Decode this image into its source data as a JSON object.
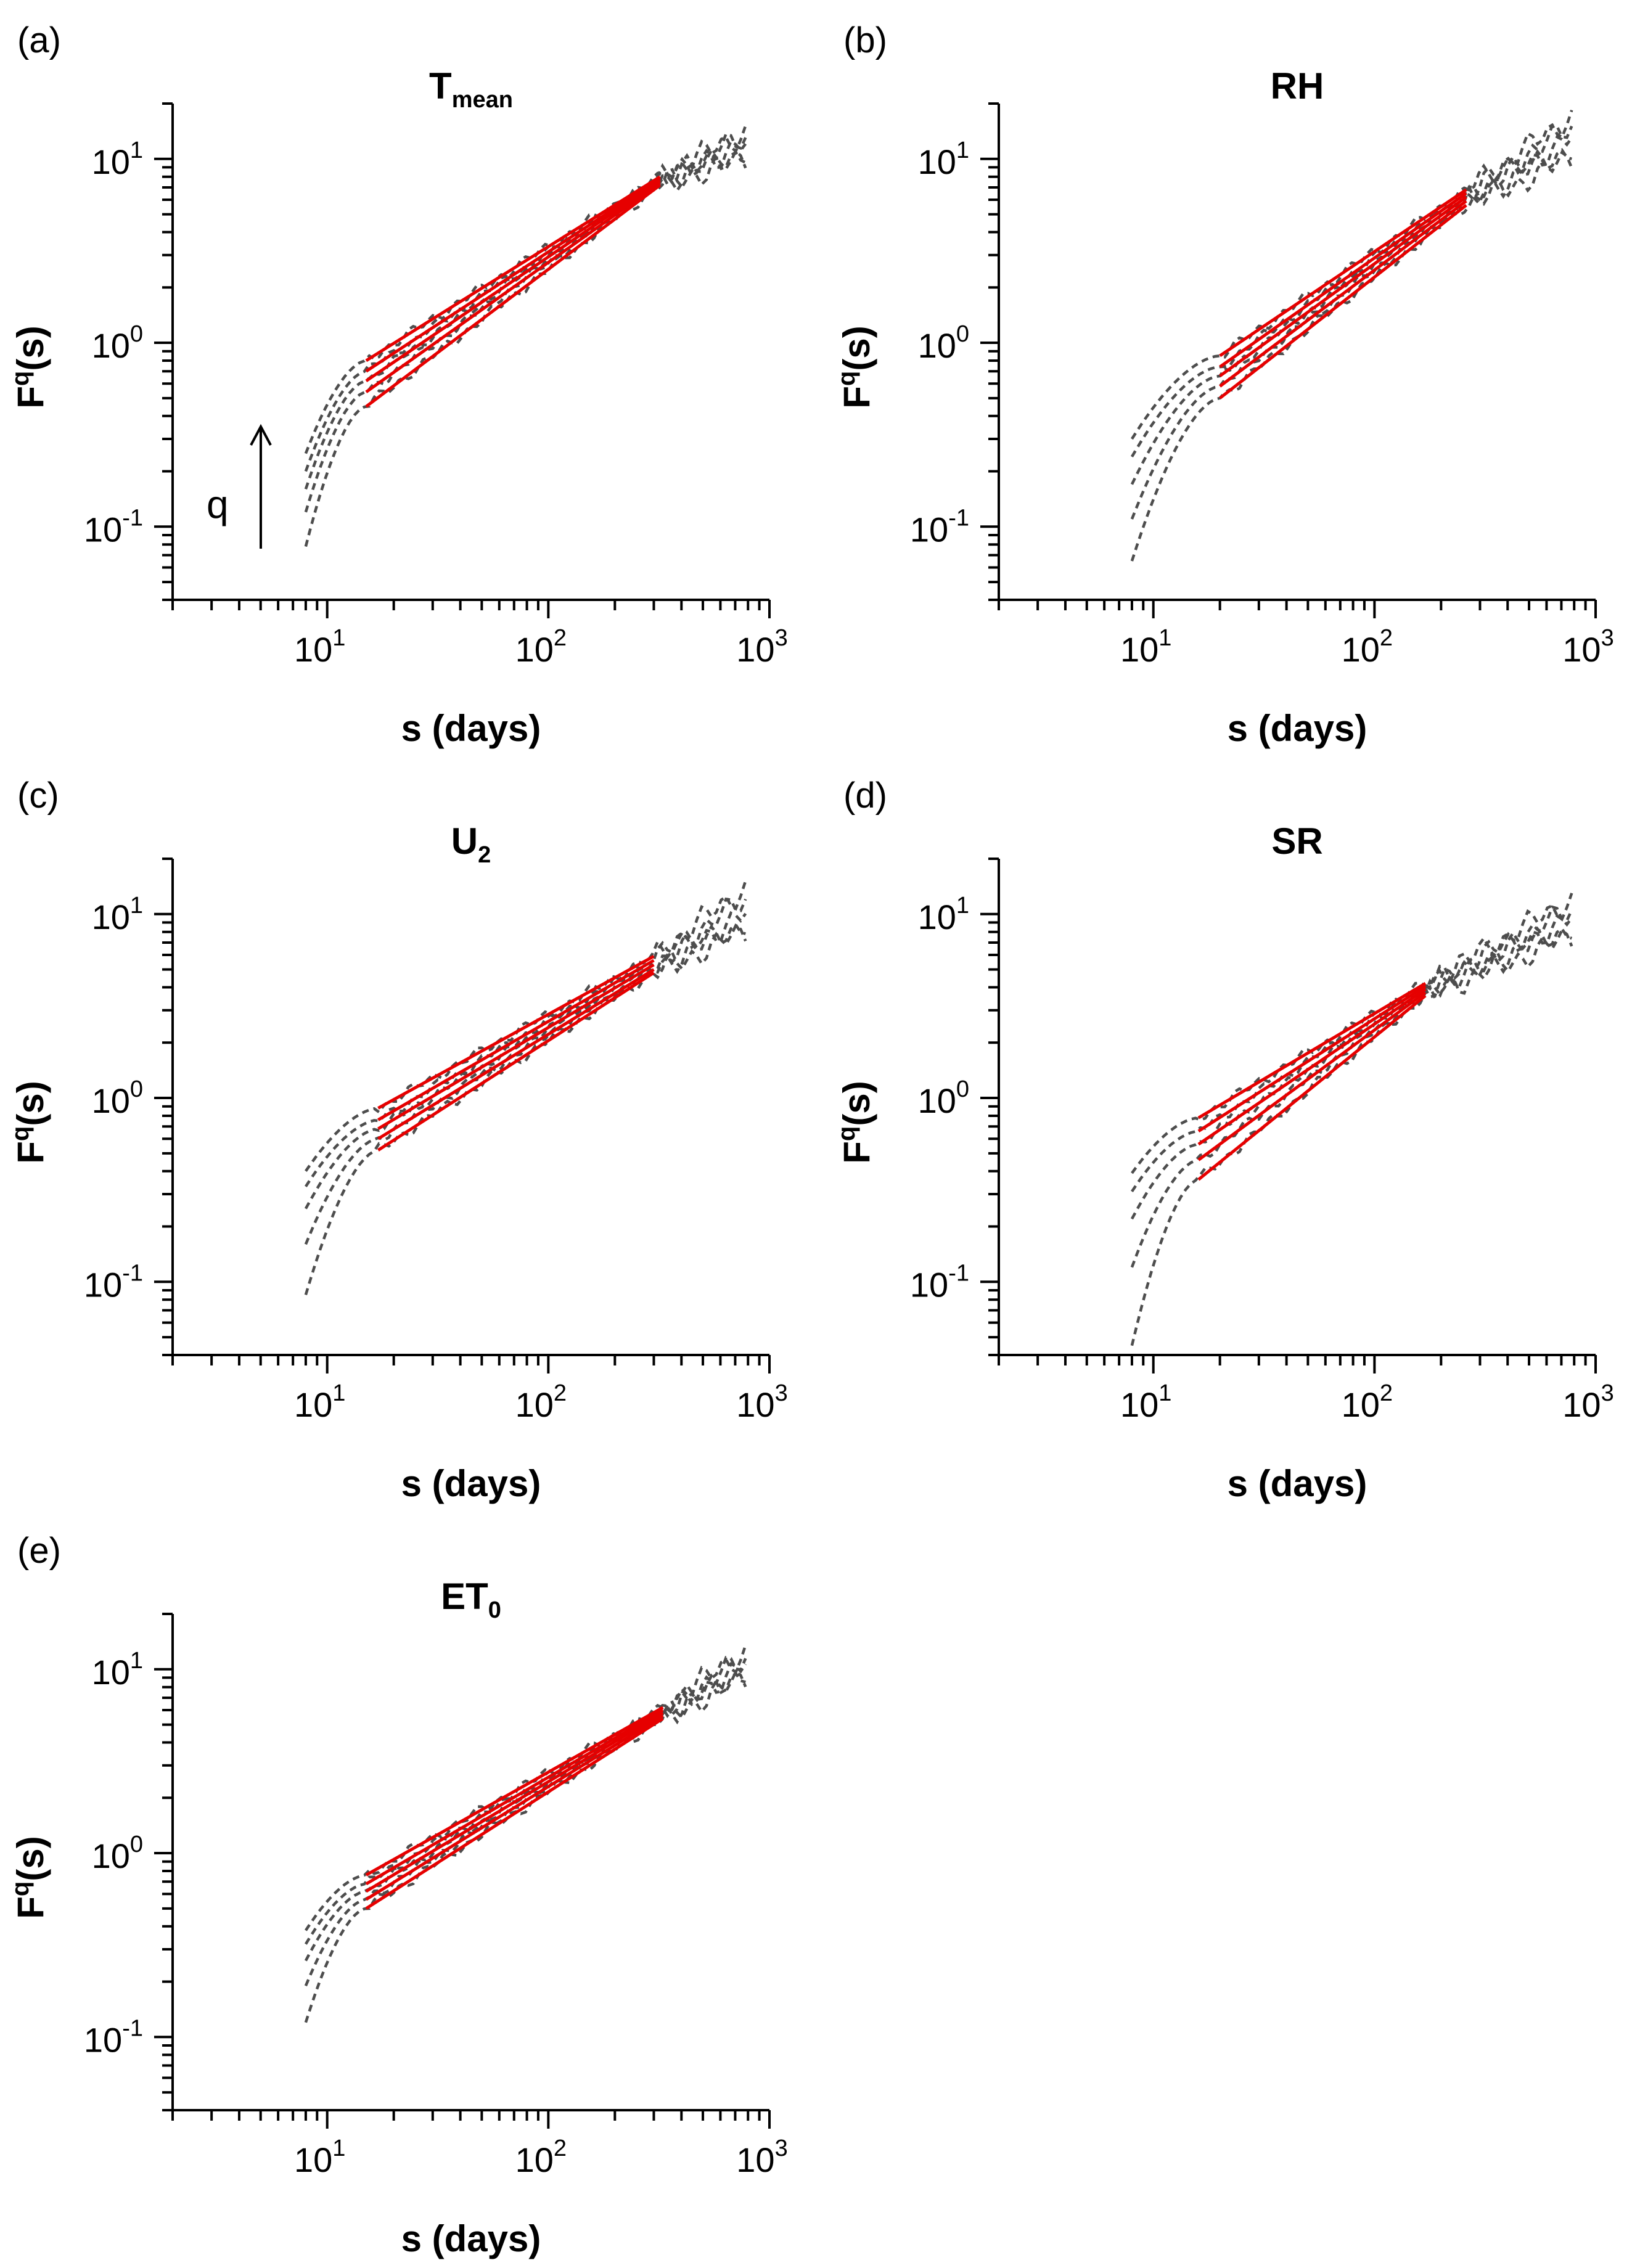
{
  "figure": {
    "x_label": "s (days)",
    "y_label": {
      "base": "F",
      "sup": "q",
      "rest": "(s)"
    },
    "annotation": {
      "text": "q"
    },
    "colors": {
      "data": "#4d4d4d",
      "fit": "#e60000",
      "axis": "#000000"
    }
  },
  "chart_data": [
    {
      "type": "line",
      "panel": "(a)",
      "title": {
        "main": "T",
        "sub": "mean"
      },
      "xlabel": "s (days)",
      "ylabel": "Fq(s)",
      "xscale": "log",
      "yscale": "log",
      "xlim": [
        2,
        1000
      ],
      "ylim": [
        0.04,
        20
      ],
      "xticks": [
        {
          "base": "10",
          "exp": "1",
          "value": 10
        },
        {
          "base": "10",
          "exp": "2",
          "value": 100
        },
        {
          "base": "10",
          "exp": "3",
          "value": 1000
        }
      ],
      "yticks": [
        {
          "base": "10",
          "exp": "-1",
          "value": 0.1
        },
        {
          "base": "10",
          "exp": "0",
          "value": 1
        },
        {
          "base": "10",
          "exp": "1",
          "value": 10
        }
      ],
      "show_q_arrow": true,
      "data_curves": {
        "s_min": 8,
        "s_max": 780,
        "F_start": [
          0.078,
          0.12,
          0.16,
          0.2,
          0.25
        ],
        "F_fit_start": [
          0.45,
          0.54,
          0.62,
          0.7,
          0.8
        ],
        "F_end": [
          10.0,
          11.0,
          12.0,
          13.0,
          14.0
        ]
      },
      "fit_lines": {
        "s_start": 15,
        "s_end": 320,
        "F_start": [
          0.45,
          0.54,
          0.62,
          0.7,
          0.8
        ],
        "F_end": [
          7.2,
          7.4,
          7.6,
          7.8,
          8.0
        ]
      }
    },
    {
      "type": "line",
      "panel": "(b)",
      "title": {
        "main": "RH",
        "sub": ""
      },
      "xlabel": "s (days)",
      "ylabel": "Fq(s)",
      "xscale": "log",
      "yscale": "log",
      "xlim": [
        2,
        1000
      ],
      "ylim": [
        0.04,
        20
      ],
      "xticks": [
        {
          "base": "10",
          "exp": "1",
          "value": 10
        },
        {
          "base": "10",
          "exp": "2",
          "value": 100
        },
        {
          "base": "10",
          "exp": "3",
          "value": 1000
        }
      ],
      "yticks": [
        {
          "base": "10",
          "exp": "-1",
          "value": 0.1
        },
        {
          "base": "10",
          "exp": "0",
          "value": 1
        },
        {
          "base": "10",
          "exp": "1",
          "value": 10
        }
      ],
      "show_q_arrow": false,
      "data_curves": {
        "s_min": 8,
        "s_max": 780,
        "F_start": [
          0.065,
          0.11,
          0.17,
          0.24,
          0.3
        ],
        "F_fit_start": [
          0.5,
          0.58,
          0.66,
          0.74,
          0.85
        ],
        "F_end": [
          10.0,
          11.5,
          13.0,
          15.0,
          17.0
        ]
      },
      "fit_lines": {
        "s_start": 20,
        "s_end": 260,
        "F_start": [
          0.5,
          0.58,
          0.66,
          0.74,
          0.85
        ],
        "F_end": [
          5.6,
          5.9,
          6.2,
          6.5,
          6.8
        ]
      }
    },
    {
      "type": "line",
      "panel": "(c)",
      "title": {
        "main": "U",
        "sub": "2"
      },
      "xlabel": "s (days)",
      "ylabel": "Fq(s)",
      "xscale": "log",
      "yscale": "log",
      "xlim": [
        2,
        1000
      ],
      "ylim": [
        0.04,
        20
      ],
      "xticks": [
        {
          "base": "10",
          "exp": "1",
          "value": 10
        },
        {
          "base": "10",
          "exp": "2",
          "value": 100
        },
        {
          "base": "10",
          "exp": "3",
          "value": 1000
        }
      ],
      "yticks": [
        {
          "base": "10",
          "exp": "-1",
          "value": 0.1
        },
        {
          "base": "10",
          "exp": "0",
          "value": 1
        },
        {
          "base": "10",
          "exp": "1",
          "value": 10
        }
      ],
      "show_q_arrow": false,
      "data_curves": {
        "s_min": 8,
        "s_max": 780,
        "F_start": [
          0.085,
          0.16,
          0.25,
          0.33,
          0.4
        ],
        "F_fit_start": [
          0.52,
          0.6,
          0.68,
          0.76,
          0.88
        ],
        "F_end": [
          8.0,
          9.0,
          10.0,
          12.0,
          14.0
        ]
      },
      "fit_lines": {
        "s_start": 17,
        "s_end": 300,
        "F_start": [
          0.52,
          0.6,
          0.68,
          0.76,
          0.88
        ],
        "F_end": [
          4.8,
          5.0,
          5.3,
          5.6,
          5.9
        ]
      }
    },
    {
      "type": "line",
      "panel": "(d)",
      "title": {
        "main": "SR",
        "sub": ""
      },
      "xlabel": "s (days)",
      "ylabel": "Fq(s)",
      "xscale": "log",
      "yscale": "log",
      "xlim": [
        2,
        1000
      ],
      "ylim": [
        0.04,
        20
      ],
      "xticks": [
        {
          "base": "10",
          "exp": "1",
          "value": 10
        },
        {
          "base": "10",
          "exp": "2",
          "value": 100
        },
        {
          "base": "10",
          "exp": "3",
          "value": 1000
        }
      ],
      "yticks": [
        {
          "base": "10",
          "exp": "-1",
          "value": 0.1
        },
        {
          "base": "10",
          "exp": "0",
          "value": 1
        },
        {
          "base": "10",
          "exp": "1",
          "value": 10
        }
      ],
      "show_q_arrow": false,
      "data_curves": {
        "s_min": 8,
        "s_max": 780,
        "F_start": [
          0.045,
          0.12,
          0.22,
          0.31,
          0.39
        ],
        "F_fit_start": [
          0.36,
          0.46,
          0.56,
          0.66,
          0.78
        ],
        "F_end": [
          7.5,
          8.5,
          9.5,
          10.5,
          12.0
        ]
      },
      "fit_lines": {
        "s_start": 16,
        "s_end": 170,
        "F_start": [
          0.36,
          0.46,
          0.56,
          0.66,
          0.78
        ],
        "F_end": [
          3.6,
          3.75,
          3.9,
          4.05,
          4.2
        ]
      }
    },
    {
      "type": "line",
      "panel": "(e)",
      "title": {
        "main": "ET",
        "sub": "0"
      },
      "xlabel": "s (days)",
      "ylabel": "Fq(s)",
      "xscale": "log",
      "yscale": "log",
      "xlim": [
        2,
        1000
      ],
      "ylim": [
        0.04,
        20
      ],
      "xticks": [
        {
          "base": "10",
          "exp": "1",
          "value": 10
        },
        {
          "base": "10",
          "exp": "2",
          "value": 100
        },
        {
          "base": "10",
          "exp": "3",
          "value": 1000
        }
      ],
      "yticks": [
        {
          "base": "10",
          "exp": "-1",
          "value": 0.1
        },
        {
          "base": "10",
          "exp": "0",
          "value": 1
        },
        {
          "base": "10",
          "exp": "1",
          "value": 10
        }
      ],
      "show_q_arrow": false,
      "data_curves": {
        "s_min": 8,
        "s_max": 780,
        "F_start": [
          0.12,
          0.19,
          0.26,
          0.32,
          0.38
        ],
        "F_fit_start": [
          0.5,
          0.56,
          0.62,
          0.68,
          0.76
        ],
        "F_end": [
          9.0,
          9.8,
          10.6,
          11.4,
          12.5
        ]
      },
      "fit_lines": {
        "s_start": 15,
        "s_end": 330,
        "F_start": [
          0.5,
          0.56,
          0.62,
          0.68,
          0.76
        ],
        "F_end": [
          5.4,
          5.6,
          5.8,
          6.0,
          6.2
        ]
      }
    }
  ]
}
